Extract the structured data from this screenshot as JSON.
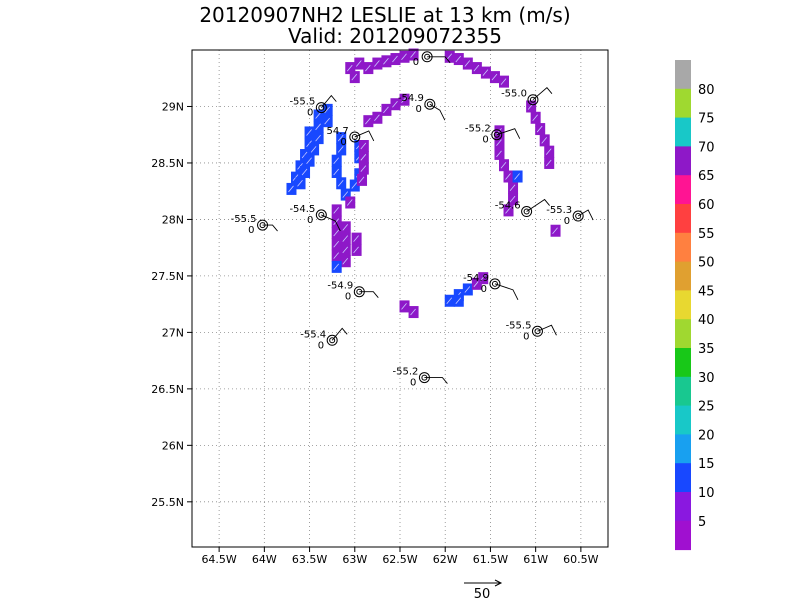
{
  "chart_data": {
    "type": "scatter",
    "title": "20120907NH2 LESLIE at 13 km (m/s)",
    "subtitle": "Valid: 201209072355",
    "xlabel": "",
    "ylabel": "",
    "xlim": [
      -64.8,
      -60.2
    ],
    "ylim": [
      25.1,
      29.5
    ],
    "grid": true,
    "x_ticks": [
      {
        "value": -64.5,
        "label": "64.5W"
      },
      {
        "value": -64.0,
        "label": "64W"
      },
      {
        "value": -63.5,
        "label": "63.5W"
      },
      {
        "value": -63.0,
        "label": "63W"
      },
      {
        "value": -62.5,
        "label": "62.5W"
      },
      {
        "value": -62.0,
        "label": "62W"
      },
      {
        "value": -61.5,
        "label": "61.5W"
      },
      {
        "value": -61.0,
        "label": "61W"
      },
      {
        "value": -60.5,
        "label": "60.5W"
      }
    ],
    "y_ticks": [
      {
        "value": 25.5,
        "label": "25.5N"
      },
      {
        "value": 26.0,
        "label": "26N"
      },
      {
        "value": 26.5,
        "label": "26.5N"
      },
      {
        "value": 27.0,
        "label": "27N"
      },
      {
        "value": 27.5,
        "label": "27.5N"
      },
      {
        "value": 28.0,
        "label": "28N"
      },
      {
        "value": 28.5,
        "label": "28.5N"
      },
      {
        "value": 29.0,
        "label": "29N"
      }
    ],
    "observations": [
      {
        "lon": -63.37,
        "lat": 28.99,
        "label": "-55.5",
        "sub": "0"
      },
      {
        "lon": -63.0,
        "lat": 28.73,
        "label": "54.7",
        "sub": "0"
      },
      {
        "lon": -62.2,
        "lat": 29.44,
        "label": "",
        "sub": "0"
      },
      {
        "lon": -62.17,
        "lat": 29.02,
        "label": "-54.9",
        "sub": "0"
      },
      {
        "lon": -61.03,
        "lat": 29.06,
        "label": "-55.0",
        "sub": ""
      },
      {
        "lon": -61.43,
        "lat": 28.75,
        "label": "-55.2",
        "sub": "0"
      },
      {
        "lon": -64.02,
        "lat": 27.95,
        "label": "-55.5",
        "sub": "0"
      },
      {
        "lon": -63.37,
        "lat": 28.04,
        "label": "-54.5",
        "sub": "0"
      },
      {
        "lon": -61.1,
        "lat": 28.07,
        "label": "-54.6",
        "sub": ""
      },
      {
        "lon": -60.53,
        "lat": 28.03,
        "label": "-55.3",
        "sub": "0"
      },
      {
        "lon": -62.95,
        "lat": 27.36,
        "label": "-54.9",
        "sub": "0"
      },
      {
        "lon": -61.45,
        "lat": 27.43,
        "label": "-54.9",
        "sub": "0"
      },
      {
        "lon": -63.25,
        "lat": 26.93,
        "label": "-55.4",
        "sub": "0"
      },
      {
        "lon": -60.98,
        "lat": 27.01,
        "label": "-55.5",
        "sub": "0"
      },
      {
        "lon": -62.23,
        "lat": 26.6,
        "label": "-55.2",
        "sub": "0"
      }
    ],
    "wind_speed_cells": [
      {
        "lon": -62.95,
        "lat": 29.38,
        "v": 5
      },
      {
        "lon": -62.85,
        "lat": 29.34,
        "v": 5
      },
      {
        "lon": -62.75,
        "lat": 29.38,
        "v": 5
      },
      {
        "lon": -62.65,
        "lat": 29.4,
        "v": 5
      },
      {
        "lon": -62.55,
        "lat": 29.42,
        "v": 5
      },
      {
        "lon": -62.45,
        "lat": 29.44,
        "v": 5
      },
      {
        "lon": -62.35,
        "lat": 29.46,
        "v": 5
      },
      {
        "lon": -63.05,
        "lat": 29.34,
        "v": 5
      },
      {
        "lon": -63.0,
        "lat": 29.26,
        "v": 10
      },
      {
        "lon": -61.85,
        "lat": 29.42,
        "v": 5
      },
      {
        "lon": -61.75,
        "lat": 29.38,
        "v": 5
      },
      {
        "lon": -61.65,
        "lat": 29.34,
        "v": 5
      },
      {
        "lon": -61.55,
        "lat": 29.3,
        "v": 5
      },
      {
        "lon": -61.45,
        "lat": 29.26,
        "v": 5
      },
      {
        "lon": -61.35,
        "lat": 29.22,
        "v": 5
      },
      {
        "lon": -61.95,
        "lat": 29.44,
        "v": 5
      },
      {
        "lon": -62.65,
        "lat": 28.97,
        "v": 5
      },
      {
        "lon": -62.55,
        "lat": 29.02,
        "v": 5
      },
      {
        "lon": -62.45,
        "lat": 29.06,
        "v": 5
      },
      {
        "lon": -62.75,
        "lat": 28.9,
        "v": 5
      },
      {
        "lon": -62.85,
        "lat": 28.87,
        "v": 5
      },
      {
        "lon": -63.3,
        "lat": 28.97,
        "v": 15
      },
      {
        "lon": -63.4,
        "lat": 28.92,
        "v": 15
      },
      {
        "lon": -63.3,
        "lat": 28.87,
        "v": 15
      },
      {
        "lon": -63.4,
        "lat": 28.82,
        "v": 15
      },
      {
        "lon": -63.5,
        "lat": 28.77,
        "v": 15
      },
      {
        "lon": -63.4,
        "lat": 28.72,
        "v": 15
      },
      {
        "lon": -63.5,
        "lat": 28.67,
        "v": 15
      },
      {
        "lon": -63.45,
        "lat": 28.62,
        "v": 15
      },
      {
        "lon": -63.55,
        "lat": 28.57,
        "v": 15
      },
      {
        "lon": -63.5,
        "lat": 28.52,
        "v": 15
      },
      {
        "lon": -63.6,
        "lat": 28.47,
        "v": 15
      },
      {
        "lon": -63.55,
        "lat": 28.42,
        "v": 15
      },
      {
        "lon": -63.65,
        "lat": 28.37,
        "v": 15
      },
      {
        "lon": -63.6,
        "lat": 28.32,
        "v": 15
      },
      {
        "lon": -63.7,
        "lat": 28.27,
        "v": 15
      },
      {
        "lon": -63.15,
        "lat": 28.72,
        "v": 15
      },
      {
        "lon": -63.15,
        "lat": 28.62,
        "v": 15
      },
      {
        "lon": -63.2,
        "lat": 28.52,
        "v": 15
      },
      {
        "lon": -63.2,
        "lat": 28.42,
        "v": 15
      },
      {
        "lon": -63.15,
        "lat": 28.32,
        "v": 15
      },
      {
        "lon": -63.1,
        "lat": 28.22,
        "v": 15
      },
      {
        "lon": -62.95,
        "lat": 28.65,
        "v": 15
      },
      {
        "lon": -62.95,
        "lat": 28.55,
        "v": 15
      },
      {
        "lon": -62.95,
        "lat": 28.4,
        "v": 15
      },
      {
        "lon": -63.0,
        "lat": 28.3,
        "v": 15
      },
      {
        "lon": -62.9,
        "lat": 28.65,
        "v": 5
      },
      {
        "lon": -62.9,
        "lat": 28.55,
        "v": 5
      },
      {
        "lon": -62.9,
        "lat": 28.45,
        "v": 5
      },
      {
        "lon": -62.92,
        "lat": 28.35,
        "v": 5
      },
      {
        "lon": -63.05,
        "lat": 28.15,
        "v": 5
      },
      {
        "lon": -63.2,
        "lat": 28.08,
        "v": 5
      },
      {
        "lon": -63.2,
        "lat": 27.98,
        "v": 5
      },
      {
        "lon": -63.2,
        "lat": 27.88,
        "v": 5
      },
      {
        "lon": -63.1,
        "lat": 27.93,
        "v": 5
      },
      {
        "lon": -63.1,
        "lat": 27.83,
        "v": 5
      },
      {
        "lon": -63.1,
        "lat": 27.73,
        "v": 5
      },
      {
        "lon": -63.2,
        "lat": 27.78,
        "v": 5
      },
      {
        "lon": -63.2,
        "lat": 27.68,
        "v": 5
      },
      {
        "lon": -63.1,
        "lat": 27.63,
        "v": 5
      },
      {
        "lon": -62.98,
        "lat": 27.73,
        "v": 5
      },
      {
        "lon": -62.98,
        "lat": 27.83,
        "v": 5
      },
      {
        "lon": -63.2,
        "lat": 27.58,
        "v": 15
      },
      {
        "lon": -61.4,
        "lat": 28.78,
        "v": 5
      },
      {
        "lon": -61.4,
        "lat": 28.68,
        "v": 5
      },
      {
        "lon": -61.4,
        "lat": 28.58,
        "v": 5
      },
      {
        "lon": -61.35,
        "lat": 28.48,
        "v": 5
      },
      {
        "lon": -61.3,
        "lat": 28.38,
        "v": 5
      },
      {
        "lon": -61.25,
        "lat": 28.28,
        "v": 5
      },
      {
        "lon": -61.25,
        "lat": 28.18,
        "v": 5
      },
      {
        "lon": -61.3,
        "lat": 28.08,
        "v": 5
      },
      {
        "lon": -61.2,
        "lat": 28.38,
        "v": 15
      },
      {
        "lon": -61.05,
        "lat": 29.0,
        "v": 5
      },
      {
        "lon": -61.0,
        "lat": 28.9,
        "v": 5
      },
      {
        "lon": -60.95,
        "lat": 28.8,
        "v": 5
      },
      {
        "lon": -60.9,
        "lat": 28.7,
        "v": 5
      },
      {
        "lon": -60.85,
        "lat": 28.6,
        "v": 5
      },
      {
        "lon": -60.85,
        "lat": 28.5,
        "v": 5
      },
      {
        "lon": -60.78,
        "lat": 27.9,
        "v": 5
      },
      {
        "lon": -62.45,
        "lat": 27.23,
        "v": 5
      },
      {
        "lon": -62.35,
        "lat": 27.18,
        "v": 5
      },
      {
        "lon": -61.95,
        "lat": 27.28,
        "v": 15
      },
      {
        "lon": -61.85,
        "lat": 27.33,
        "v": 15
      },
      {
        "lon": -61.75,
        "lat": 27.38,
        "v": 15
      },
      {
        "lon": -61.85,
        "lat": 27.28,
        "v": 15
      },
      {
        "lon": -61.65,
        "lat": 27.43,
        "v": 5
      },
      {
        "lon": -61.58,
        "lat": 27.48,
        "v": 5
      }
    ],
    "colorbar": {
      "labels": [
        "80",
        "75",
        "70",
        "65",
        "60",
        "55",
        "50",
        "45",
        "40",
        "35",
        "30",
        "25",
        "20",
        "15",
        "10",
        "5"
      ],
      "colors": [
        "#a8a8a8",
        "#9fd930",
        "#18c8c8",
        "#8e18c8",
        "#ff1493",
        "#ff4040",
        "#ff8040",
        "#e0a030",
        "#e8d830",
        "#a0d830",
        "#18c818",
        "#18c890",
        "#18c8c8",
        "#18a0f0",
        "#1848ff",
        "#8a18e0",
        "#a010d0"
      ]
    },
    "reference_vector": {
      "label": "50"
    }
  }
}
